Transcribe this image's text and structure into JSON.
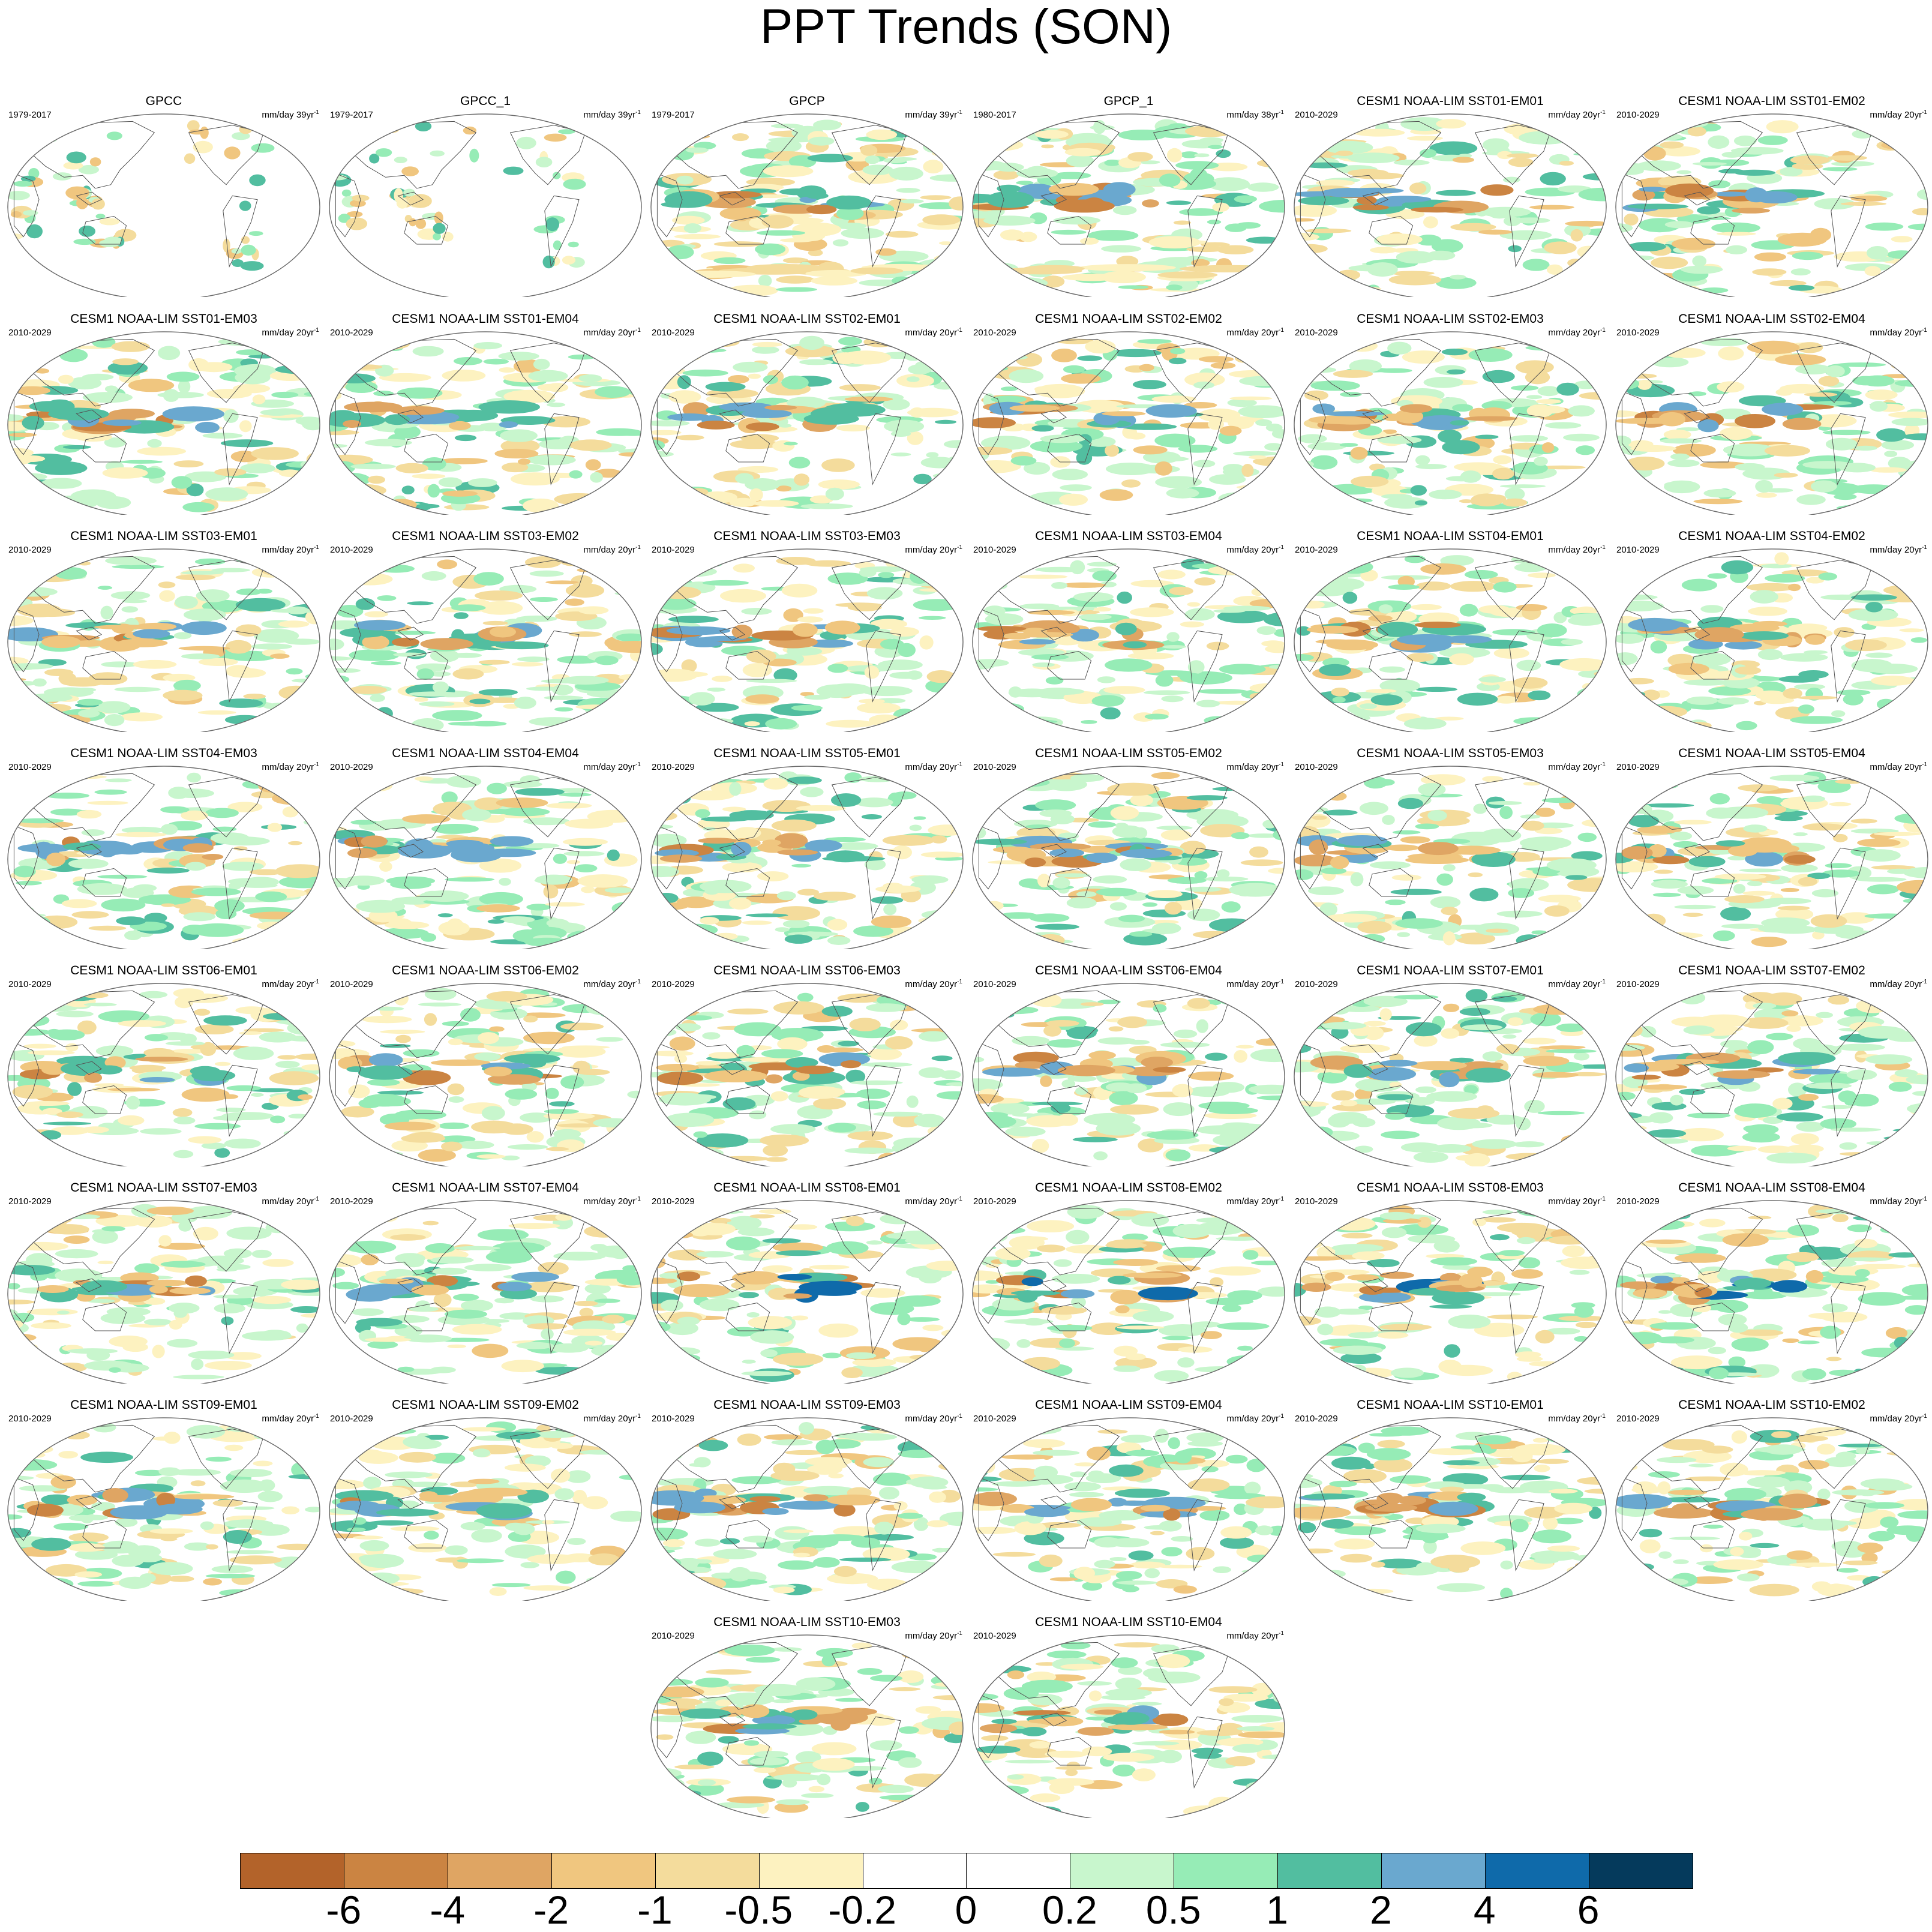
{
  "title": "PPT Trends (SON)",
  "chart_data": {
    "type": "heatmap",
    "title": "PPT Trends (SON)",
    "colorbar": {
      "colors": [
        "#b3632a",
        "#cb8442",
        "#dfa563",
        "#f0c67f",
        "#f4dc9c",
        "#fdf2c0",
        "#ffffff",
        "#ffffff",
        "#c8f6cd",
        "#96ecb6",
        "#52bea0",
        "#6aa8cf",
        "#0f6aaa",
        "#053a5c"
      ],
      "tick_labels": [
        "-6",
        "-4",
        "-2",
        "-1",
        "-0.5",
        "-0.2",
        "0",
        "0.2",
        "0.5",
        "1",
        "2",
        "4",
        "6"
      ]
    },
    "panels": [
      {
        "title": "GPCC",
        "period": "1979-2017",
        "units": "mm/day 39yr",
        "units_exp": "-1",
        "dataset": "obs_gpcc"
      },
      {
        "title": "GPCC_1",
        "period": "1979-2017",
        "units": "mm/day 39yr",
        "units_exp": "-1",
        "dataset": "obs_gpcc"
      },
      {
        "title": "GPCP",
        "period": "1979-2017",
        "units": "mm/day 39yr",
        "units_exp": "-1",
        "dataset": "obs_gpcp"
      },
      {
        "title": "GPCP_1",
        "period": "1980-2017",
        "units": "mm/day 38yr",
        "units_exp": "-1",
        "dataset": "obs_gpcp"
      },
      {
        "title": "CESM1 NOAA-LIM SST01-EM01",
        "period": "2010-2029",
        "units": "mm/day 20yr",
        "units_exp": "-1",
        "dataset": "model"
      },
      {
        "title": "CESM1 NOAA-LIM SST01-EM02",
        "period": "2010-2029",
        "units": "mm/day 20yr",
        "units_exp": "-1",
        "dataset": "model"
      },
      {
        "title": "CESM1 NOAA-LIM SST01-EM03",
        "period": "2010-2029",
        "units": "mm/day 20yr",
        "units_exp": "-1",
        "dataset": "model"
      },
      {
        "title": "CESM1 NOAA-LIM SST01-EM04",
        "period": "2010-2029",
        "units": "mm/day 20yr",
        "units_exp": "-1",
        "dataset": "model"
      },
      {
        "title": "CESM1 NOAA-LIM SST02-EM01",
        "period": "2010-2029",
        "units": "mm/day 20yr",
        "units_exp": "-1",
        "dataset": "model"
      },
      {
        "title": "CESM1 NOAA-LIM SST02-EM02",
        "period": "2010-2029",
        "units": "mm/day 20yr",
        "units_exp": "-1",
        "dataset": "model"
      },
      {
        "title": "CESM1 NOAA-LIM SST02-EM03",
        "period": "2010-2029",
        "units": "mm/day 20yr",
        "units_exp": "-1",
        "dataset": "model"
      },
      {
        "title": "CESM1 NOAA-LIM SST02-EM04",
        "period": "2010-2029",
        "units": "mm/day 20yr",
        "units_exp": "-1",
        "dataset": "model"
      },
      {
        "title": "CESM1 NOAA-LIM SST03-EM01",
        "period": "2010-2029",
        "units": "mm/day 20yr",
        "units_exp": "-1",
        "dataset": "model"
      },
      {
        "title": "CESM1 NOAA-LIM SST03-EM02",
        "period": "2010-2029",
        "units": "mm/day 20yr",
        "units_exp": "-1",
        "dataset": "model"
      },
      {
        "title": "CESM1 NOAA-LIM SST03-EM03",
        "period": "2010-2029",
        "units": "mm/day 20yr",
        "units_exp": "-1",
        "dataset": "model"
      },
      {
        "title": "CESM1 NOAA-LIM SST03-EM04",
        "period": "2010-2029",
        "units": "mm/day 20yr",
        "units_exp": "-1",
        "dataset": "model"
      },
      {
        "title": "CESM1 NOAA-LIM SST04-EM01",
        "period": "2010-2029",
        "units": "mm/day 20yr",
        "units_exp": "-1",
        "dataset": "model"
      },
      {
        "title": "CESM1 NOAA-LIM SST04-EM02",
        "period": "2010-2029",
        "units": "mm/day 20yr",
        "units_exp": "-1",
        "dataset": "model"
      },
      {
        "title": "CESM1 NOAA-LIM SST04-EM03",
        "period": "2010-2029",
        "units": "mm/day 20yr",
        "units_exp": "-1",
        "dataset": "model"
      },
      {
        "title": "CESM1 NOAA-LIM SST04-EM04",
        "period": "2010-2029",
        "units": "mm/day 20yr",
        "units_exp": "-1",
        "dataset": "model"
      },
      {
        "title": "CESM1 NOAA-LIM SST05-EM01",
        "period": "2010-2029",
        "units": "mm/day 20yr",
        "units_exp": "-1",
        "dataset": "model"
      },
      {
        "title": "CESM1 NOAA-LIM SST05-EM02",
        "period": "2010-2029",
        "units": "mm/day 20yr",
        "units_exp": "-1",
        "dataset": "model"
      },
      {
        "title": "CESM1 NOAA-LIM SST05-EM03",
        "period": "2010-2029",
        "units": "mm/day 20yr",
        "units_exp": "-1",
        "dataset": "model"
      },
      {
        "title": "CESM1 NOAA-LIM SST05-EM04",
        "period": "2010-2029",
        "units": "mm/day 20yr",
        "units_exp": "-1",
        "dataset": "model"
      },
      {
        "title": "CESM1 NOAA-LIM SST06-EM01",
        "period": "2010-2029",
        "units": "mm/day 20yr",
        "units_exp": "-1",
        "dataset": "model"
      },
      {
        "title": "CESM1 NOAA-LIM SST06-EM02",
        "period": "2010-2029",
        "units": "mm/day 20yr",
        "units_exp": "-1",
        "dataset": "model"
      },
      {
        "title": "CESM1 NOAA-LIM SST06-EM03",
        "period": "2010-2029",
        "units": "mm/day 20yr",
        "units_exp": "-1",
        "dataset": "model"
      },
      {
        "title": "CESM1 NOAA-LIM SST06-EM04",
        "period": "2010-2029",
        "units": "mm/day 20yr",
        "units_exp": "-1",
        "dataset": "model"
      },
      {
        "title": "CESM1 NOAA-LIM SST07-EM01",
        "period": "2010-2029",
        "units": "mm/day 20yr",
        "units_exp": "-1",
        "dataset": "model"
      },
      {
        "title": "CESM1 NOAA-LIM SST07-EM02",
        "period": "2010-2029",
        "units": "mm/day 20yr",
        "units_exp": "-1",
        "dataset": "model"
      },
      {
        "title": "CESM1 NOAA-LIM SST07-EM03",
        "period": "2010-2029",
        "units": "mm/day 20yr",
        "units_exp": "-1",
        "dataset": "model"
      },
      {
        "title": "CESM1 NOAA-LIM SST07-EM04",
        "period": "2010-2029",
        "units": "mm/day 20yr",
        "units_exp": "-1",
        "dataset": "model"
      },
      {
        "title": "CESM1 NOAA-LIM SST08-EM01",
        "period": "2010-2029",
        "units": "mm/day 20yr",
        "units_exp": "-1",
        "dataset": "model"
      },
      {
        "title": "CESM1 NOAA-LIM SST08-EM02",
        "period": "2010-2029",
        "units": "mm/day 20yr",
        "units_exp": "-1",
        "dataset": "model"
      },
      {
        "title": "CESM1 NOAA-LIM SST08-EM03",
        "period": "2010-2029",
        "units": "mm/day 20yr",
        "units_exp": "-1",
        "dataset": "model"
      },
      {
        "title": "CESM1 NOAA-LIM SST08-EM04",
        "period": "2010-2029",
        "units": "mm/day 20yr",
        "units_exp": "-1",
        "dataset": "model"
      },
      {
        "title": "CESM1 NOAA-LIM SST09-EM01",
        "period": "2010-2029",
        "units": "mm/day 20yr",
        "units_exp": "-1",
        "dataset": "model"
      },
      {
        "title": "CESM1 NOAA-LIM SST09-EM02",
        "period": "2010-2029",
        "units": "mm/day 20yr",
        "units_exp": "-1",
        "dataset": "model"
      },
      {
        "title": "CESM1 NOAA-LIM SST09-EM03",
        "period": "2010-2029",
        "units": "mm/day 20yr",
        "units_exp": "-1",
        "dataset": "model"
      },
      {
        "title": "CESM1 NOAA-LIM SST09-EM04",
        "period": "2010-2029",
        "units": "mm/day 20yr",
        "units_exp": "-1",
        "dataset": "model"
      },
      {
        "title": "CESM1 NOAA-LIM SST10-EM01",
        "period": "2010-2029",
        "units": "mm/day 20yr",
        "units_exp": "-1",
        "dataset": "model"
      },
      {
        "title": "CESM1 NOAA-LIM SST10-EM02",
        "period": "2010-2029",
        "units": "mm/day 20yr",
        "units_exp": "-1",
        "dataset": "model"
      },
      {
        "title": "CESM1 NOAA-LIM SST10-EM03",
        "period": "2010-2029",
        "units": "mm/day 20yr",
        "units_exp": "-1",
        "dataset": "model"
      },
      {
        "title": "CESM1 NOAA-LIM SST10-EM04",
        "period": "2010-2029",
        "units": "mm/day 20yr",
        "units_exp": "-1",
        "dataset": "model"
      }
    ]
  }
}
